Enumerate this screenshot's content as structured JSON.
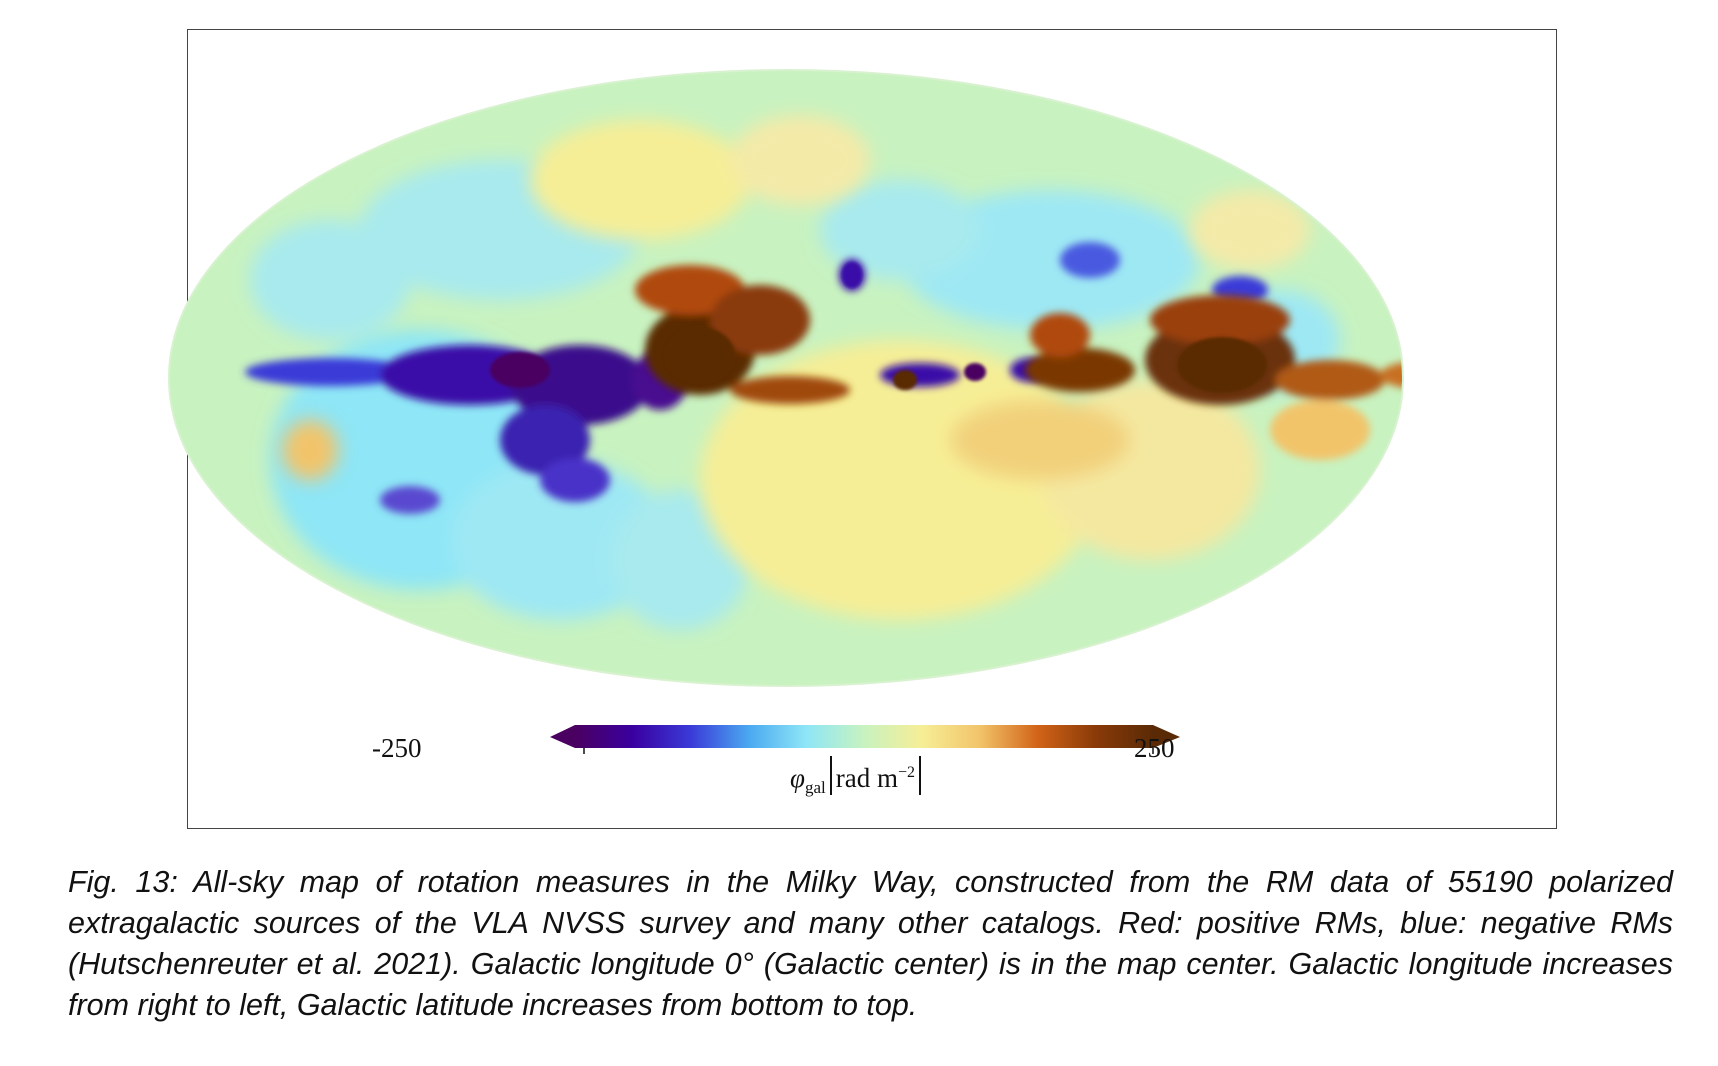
{
  "colorbar": {
    "min_label": "-250",
    "max_label": "250",
    "quantity_symbol": "φ",
    "quantity_subscript": "gal",
    "unit_base": "rad m",
    "unit_exponent": "−2",
    "colors": [
      "#4a0060",
      "#3a00a0",
      "#3a3ad8",
      "#4aa8f0",
      "#8ee6f6",
      "#c8f2c0",
      "#f6ee96",
      "#f2c46a",
      "#d26418",
      "#8a3a08",
      "#5a2a06"
    ]
  },
  "map": {
    "projection": "Mollweide all-sky",
    "background_color": "#c8f2c0",
    "positive_color": "#7a3806",
    "negative_color": "#3b0f8c"
  },
  "caption": "Fig. 13: All-sky map of rotation measures in the Milky Way, constructed from the RM data of 55190 polarized extragalactic sources of the VLA NVSS survey and many other catalogs. Red: positive RMs, blue: negative RMs (Hutschenreuter et al. 2021). Galactic longitude 0° (Galactic center) is in the map center. Galactic longitude increases from right to left, Galactic latitude increases from bottom to top."
}
